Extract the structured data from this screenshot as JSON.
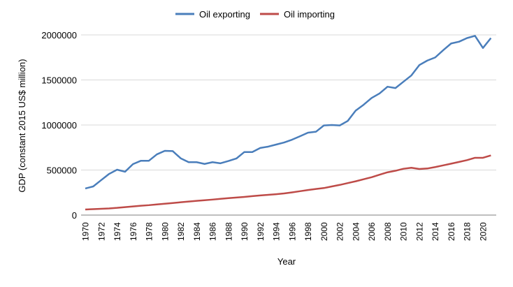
{
  "chart_data": {
    "type": "line",
    "title": "",
    "xlabel": "Year",
    "ylabel": "GDP (constant 2015 US$ million)",
    "ylim": [
      0,
      2000000
    ],
    "yticks": [
      "0",
      "500000",
      "1000000",
      "1500000",
      "2000000"
    ],
    "xlim": [
      1970,
      2021
    ],
    "xtick_step": 2,
    "grid": "horizontal",
    "legend": "top",
    "x": [
      1970,
      1971,
      1972,
      1973,
      1974,
      1975,
      1976,
      1977,
      1978,
      1979,
      1980,
      1981,
      1982,
      1983,
      1984,
      1985,
      1986,
      1987,
      1988,
      1989,
      1990,
      1991,
      1992,
      1993,
      1994,
      1995,
      1996,
      1997,
      1998,
      1999,
      2000,
      2001,
      2002,
      2003,
      2004,
      2005,
      2006,
      2007,
      2008,
      2009,
      2010,
      2011,
      2012,
      2013,
      2014,
      2015,
      2016,
      2017,
      2018,
      2019,
      2020,
      2021
    ],
    "series": [
      {
        "name": "Oil exporting",
        "color": "#4a7ebb",
        "values": [
          295000,
          318000,
          388000,
          457000,
          504000,
          481000,
          566000,
          603000,
          603000,
          674000,
          713000,
          710000,
          630000,
          587000,
          587000,
          568000,
          587000,
          575000,
          600000,
          628000,
          700000,
          700000,
          745000,
          760000,
          783000,
          806000,
          837000,
          875000,
          915000,
          925000,
          995000,
          1000000,
          995000,
          1045000,
          1160000,
          1225000,
          1300000,
          1350000,
          1425000,
          1410000,
          1480000,
          1550000,
          1665000,
          1715000,
          1750000,
          1830000,
          1905000,
          1925000,
          1965000,
          1990000,
          1855000,
          1965000
        ]
      },
      {
        "name": "Oil importing",
        "color": "#be4b48",
        "values": [
          62000,
          66000,
          70000,
          74000,
          80000,
          88000,
          96000,
          104000,
          110000,
          118000,
          126000,
          134000,
          142000,
          150000,
          158000,
          165000,
          172000,
          180000,
          188000,
          195000,
          202000,
          210000,
          218000,
          225000,
          232000,
          240000,
          252000,
          265000,
          278000,
          290000,
          300000,
          318000,
          335000,
          355000,
          375000,
          398000,
          420000,
          448000,
          475000,
          492000,
          514000,
          525000,
          512000,
          517000,
          533000,
          552000,
          571000,
          590000,
          610000,
          636000,
          636000,
          662000
        ]
      }
    ]
  }
}
